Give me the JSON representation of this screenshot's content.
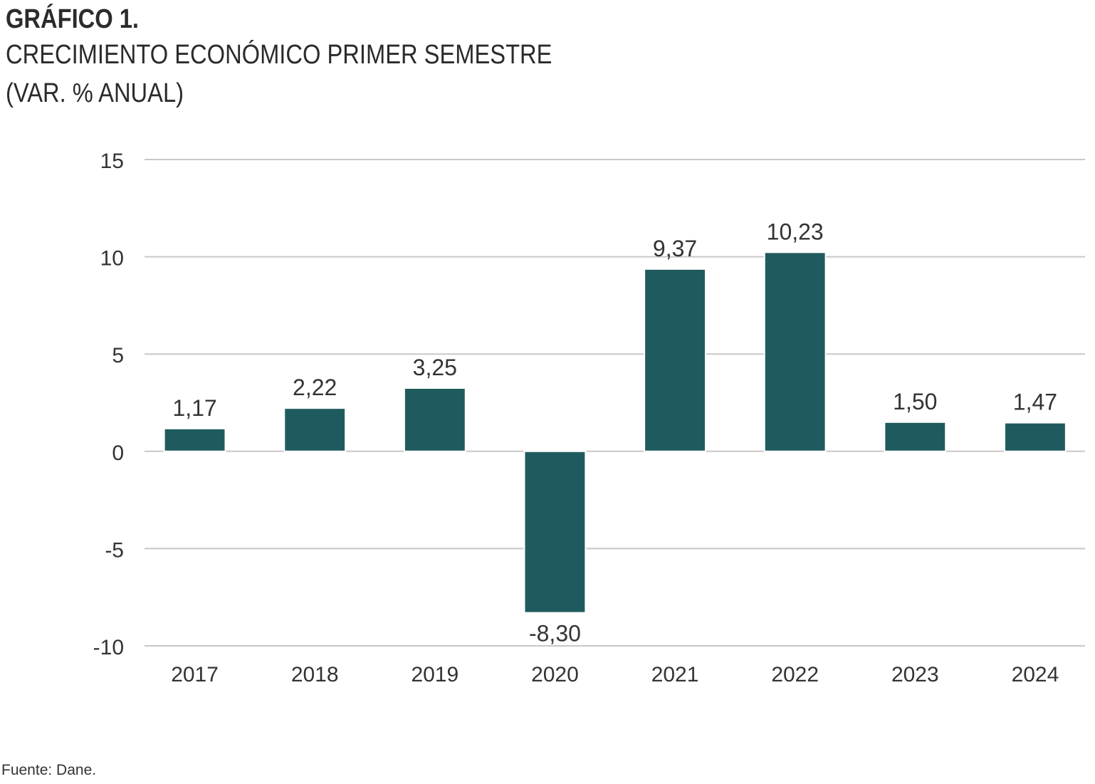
{
  "header": {
    "number": "GRÁFICO 1.",
    "title": "CRECIMIENTO ECONÓMICO PRIMER SEMESTRE",
    "subtitle": "(VAR. % ANUAL)"
  },
  "source": "Fuente: Dane.",
  "colors": {
    "bar": "#1f5b5e",
    "grid": "#c8c8c8",
    "text": "#333333"
  },
  "chart_data": {
    "type": "bar",
    "title": "CRECIMIENTO ECONÓMICO PRIMER SEMESTRE",
    "subtitle": "(VAR. % ANUAL)",
    "xlabel": "",
    "ylabel": "",
    "categories": [
      "2017",
      "2018",
      "2019",
      "2020",
      "2021",
      "2022",
      "2023",
      "2024"
    ],
    "values": [
      1.17,
      2.22,
      3.25,
      -8.3,
      9.37,
      10.23,
      1.5,
      1.47
    ],
    "value_labels": [
      "1,17",
      "2,22",
      "3,25",
      "-8,30",
      "9,37",
      "10,23",
      "1,50",
      "1,47"
    ],
    "ylim": [
      -10,
      15
    ],
    "yticks": [
      15,
      10,
      5,
      0,
      -5,
      -10
    ],
    "grid": true,
    "legend": "none"
  }
}
